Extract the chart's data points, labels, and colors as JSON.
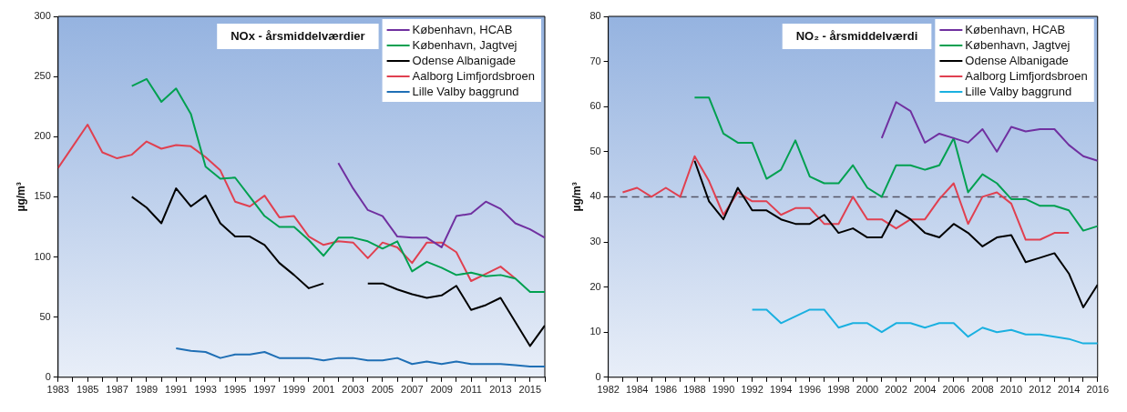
{
  "chart_data": [
    {
      "type": "line",
      "title": "NOx - årsmiddelværdier",
      "ylabel": "µg/m³",
      "legend": "top right",
      "grid": false,
      "marker": "none",
      "line_style": "solid",
      "x": [
        1983,
        1984,
        1985,
        1986,
        1987,
        1988,
        1989,
        1990,
        1991,
        1992,
        1993,
        1994,
        1995,
        1996,
        1997,
        1998,
        1999,
        2000,
        2001,
        2002,
        2003,
        2004,
        2005,
        2006,
        2007,
        2008,
        2009,
        2010,
        2011,
        2012,
        2013,
        2014,
        2015,
        2016
      ],
      "xlim": [
        1983,
        2016
      ],
      "xticks": [
        1983,
        {
          "value": 1984,
          "label": null
        },
        1985,
        {
          "value": 1986,
          "label": null
        },
        1987,
        {
          "value": 1988,
          "label": null
        },
        1989,
        {
          "value": 1990,
          "label": null
        },
        1991,
        {
          "value": 1992,
          "label": null
        },
        1993,
        {
          "value": 1994,
          "label": null
        },
        1995,
        {
          "value": 1996,
          "label": null
        },
        1997,
        {
          "value": 1998,
          "label": null
        },
        1999,
        {
          "value": 2000,
          "label": null
        },
        2001,
        {
          "value": 2002,
          "label": null
        },
        2003,
        {
          "value": 2004,
          "label": null
        },
        2005,
        {
          "value": 2006,
          "label": null
        },
        2007,
        {
          "value": 2008,
          "label": null
        },
        2009,
        {
          "value": 2010,
          "label": null
        },
        2011,
        {
          "value": 2012,
          "label": null
        },
        2013,
        {
          "value": 2014,
          "label": null
        },
        2015,
        {
          "value": 2016,
          "label": null
        }
      ],
      "ylim": [
        0,
        300
      ],
      "yticks": [
        0,
        50,
        100,
        150,
        200,
        250,
        300
      ],
      "series": [
        {
          "name": "København, HCAB",
          "color": "#7030a0",
          "values": [
            null,
            null,
            null,
            null,
            null,
            null,
            null,
            null,
            null,
            null,
            null,
            null,
            null,
            null,
            null,
            null,
            null,
            null,
            null,
            178,
            157,
            139,
            134,
            117,
            116,
            116,
            108,
            134,
            136,
            146,
            140,
            128,
            123,
            116
          ]
        },
        {
          "name": "København, Jagtvej",
          "color": "#00a050",
          "values": [
            null,
            null,
            null,
            null,
            null,
            242,
            248,
            229,
            240,
            219,
            175,
            165,
            166,
            150,
            134,
            125,
            125,
            114,
            101,
            116,
            116,
            113,
            107,
            113,
            88,
            96,
            91,
            85,
            87,
            84,
            85,
            82,
            71,
            71
          ]
        },
        {
          "name": "Odense Albanigade",
          "color": "#000000",
          "values": [
            null,
            null,
            null,
            null,
            null,
            150,
            141,
            128,
            157,
            142,
            151,
            128,
            117,
            117,
            110,
            95,
            85,
            74,
            78,
            null,
            null,
            78,
            78,
            73,
            69,
            66,
            68,
            76,
            56,
            60,
            66,
            46,
            26,
            43
          ]
        },
        {
          "name": "Aalborg Limfjordsbroen",
          "color": "#e04050",
          "values": [
            174,
            192,
            210,
            187,
            182,
            185,
            196,
            190,
            193,
            192,
            183,
            172,
            146,
            142,
            151,
            133,
            134,
            117,
            110,
            113,
            112,
            99,
            112,
            108,
            95,
            112,
            112,
            104,
            80,
            86,
            92,
            82,
            null,
            null
          ]
        },
        {
          "name": "Lille Valby baggrund",
          "color": "#1f6fb5",
          "values": [
            null,
            null,
            null,
            null,
            null,
            null,
            null,
            null,
            24,
            22,
            21,
            16,
            19,
            19,
            21,
            16,
            16,
            16,
            14,
            16,
            16,
            14,
            14,
            16,
            11,
            13,
            11,
            13,
            11,
            11,
            11,
            10,
            9,
            9
          ]
        }
      ]
    },
    {
      "type": "line",
      "title": "NO₂ - årsmiddelværdi",
      "ylabel": "µg/m³",
      "legend": "top right",
      "grid": false,
      "marker": "none",
      "line_style": "solid",
      "x": [
        1983,
        1984,
        1985,
        1986,
        1987,
        1988,
        1989,
        1990,
        1991,
        1992,
        1993,
        1994,
        1995,
        1996,
        1997,
        1998,
        1999,
        2000,
        2001,
        2002,
        2003,
        2004,
        2005,
        2006,
        2007,
        2008,
        2009,
        2010,
        2011,
        2012,
        2013,
        2014,
        2015,
        2016
      ],
      "xlim": [
        1982,
        2016
      ],
      "xticks": [
        1982,
        {
          "value": 1983,
          "label": null
        },
        1984,
        {
          "value": 1985,
          "label": null
        },
        1986,
        {
          "value": 1987,
          "label": null
        },
        1988,
        {
          "value": 1989,
          "label": null
        },
        1990,
        {
          "value": 1991,
          "label": null
        },
        1992,
        {
          "value": 1993,
          "label": null
        },
        1994,
        {
          "value": 1995,
          "label": null
        },
        1996,
        {
          "value": 1997,
          "label": null
        },
        1998,
        {
          "value": 1999,
          "label": null
        },
        2000,
        {
          "value": 2001,
          "label": null
        },
        2002,
        {
          "value": 2003,
          "label": null
        },
        2004,
        {
          "value": 2005,
          "label": null
        },
        2006,
        {
          "value": 2007,
          "label": null
        },
        2008,
        {
          "value": 2009,
          "label": null
        },
        2010,
        {
          "value": 2011,
          "label": null
        },
        2012,
        {
          "value": 2013,
          "label": null
        },
        2014,
        {
          "value": 2015,
          "label": null
        },
        2016
      ],
      "ylim": [
        0,
        80
      ],
      "yticks": [
        0,
        10,
        20,
        30,
        40,
        50,
        60,
        70,
        80
      ],
      "ref_lines": [
        {
          "axis": "y",
          "value": 40,
          "color": "#555566",
          "line_style": "dashed"
        }
      ],
      "series": [
        {
          "name": "København, HCAB",
          "color": "#7030a0",
          "values": [
            null,
            null,
            null,
            null,
            null,
            null,
            null,
            null,
            null,
            null,
            null,
            null,
            null,
            null,
            null,
            null,
            null,
            null,
            53,
            61,
            59,
            52,
            54,
            53,
            52,
            55,
            50,
            55.5,
            54.5,
            55,
            55,
            51.5,
            49,
            48
          ]
        },
        {
          "name": "København, Jagtvej",
          "color": "#00a050",
          "values": [
            null,
            null,
            null,
            null,
            null,
            62,
            62,
            54,
            52,
            52,
            44,
            46,
            52.5,
            44.5,
            43,
            43,
            47,
            42,
            40,
            47,
            47,
            46,
            47,
            53,
            41,
            45,
            43,
            39.5,
            39.5,
            38,
            38,
            37,
            32.5,
            33.5
          ]
        },
        {
          "name": "Odense Albanigade",
          "color": "#000000",
          "values": [
            null,
            null,
            null,
            null,
            null,
            48,
            39,
            35,
            42,
            37,
            37,
            35,
            34,
            34,
            36,
            32,
            33,
            31,
            31,
            37,
            35,
            32,
            31,
            34,
            32,
            29,
            31,
            31.5,
            25.5,
            26.5,
            27.5,
            23,
            15.5,
            20.5
          ]
        },
        {
          "name": "Aalborg Limfjordsbroen",
          "color": "#e04050",
          "values": [
            41,
            42,
            40,
            42,
            40,
            49,
            43.5,
            36,
            41,
            39,
            39,
            36,
            37.5,
            37.5,
            34,
            34,
            40,
            35,
            35,
            33,
            35,
            35,
            39.5,
            43,
            34,
            40,
            41,
            38.5,
            30.5,
            30.5,
            32,
            32,
            null,
            null
          ]
        },
        {
          "name": "Lille Valby baggrund",
          "color": "#1ab0e0",
          "values": [
            null,
            null,
            null,
            null,
            null,
            null,
            null,
            null,
            null,
            15,
            15,
            12,
            13.5,
            15,
            15,
            11,
            12,
            12,
            10,
            12,
            12,
            11,
            12,
            12,
            9,
            11,
            10,
            10.5,
            9.5,
            9.5,
            9,
            8.5,
            7.5,
            7.5
          ]
        }
      ]
    }
  ]
}
